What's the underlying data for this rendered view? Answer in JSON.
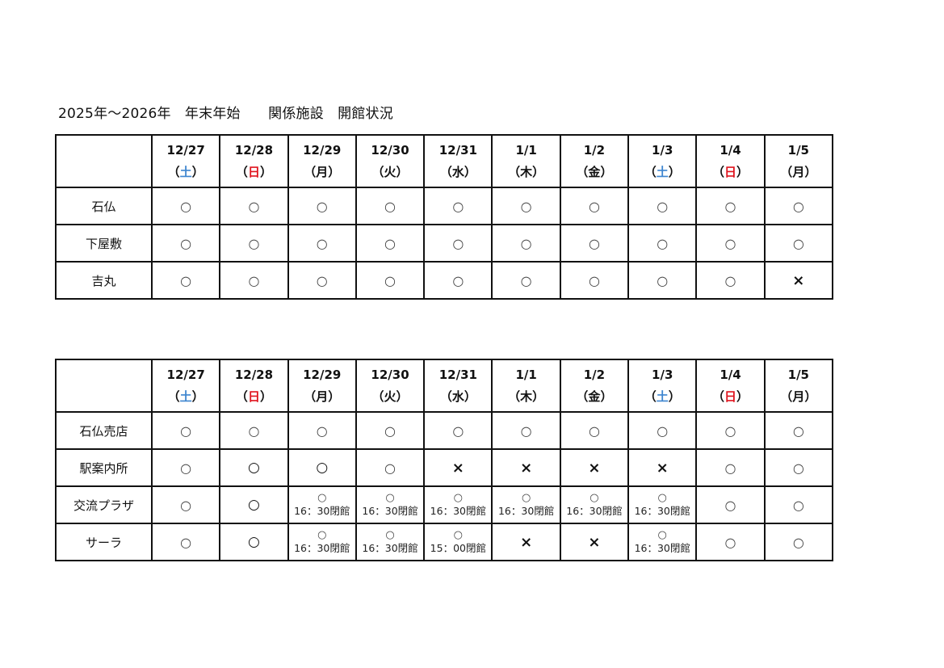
{
  "title": "2025年～2026年　年末年始　　関係施設　開館状況",
  "colors": {
    "saturday": "#3f86d0",
    "sunday": "#e0141e"
  },
  "tables": [
    {
      "days": [
        {
          "date": "12/27",
          "weekday": "土",
          "type": "sat"
        },
        {
          "date": "12/28",
          "weekday": "日",
          "type": "sun"
        },
        {
          "date": "12/29",
          "weekday": "月",
          "type": ""
        },
        {
          "date": "12/30",
          "weekday": "火",
          "type": ""
        },
        {
          "date": "12/31",
          "weekday": "水",
          "type": ""
        },
        {
          "date": "1/1",
          "weekday": "木",
          "type": ""
        },
        {
          "date": "1/2",
          "weekday": "金",
          "type": ""
        },
        {
          "date": "1/3",
          "weekday": "土",
          "type": "sat"
        },
        {
          "date": "1/4",
          "weekday": "日",
          "type": "sun"
        },
        {
          "date": "1/5",
          "weekday": "月",
          "type": ""
        }
      ],
      "rows": [
        {
          "facility": "石仏",
          "cells": [
            {
              "mark": "○"
            },
            {
              "mark": "○"
            },
            {
              "mark": "○"
            },
            {
              "mark": "○"
            },
            {
              "mark": "○"
            },
            {
              "mark": "○"
            },
            {
              "mark": "○"
            },
            {
              "mark": "○"
            },
            {
              "mark": "○"
            },
            {
              "mark": "○"
            }
          ]
        },
        {
          "facility": "下屋敷",
          "cells": [
            {
              "mark": "○"
            },
            {
              "mark": "○"
            },
            {
              "mark": "○"
            },
            {
              "mark": "○"
            },
            {
              "mark": "○"
            },
            {
              "mark": "○"
            },
            {
              "mark": "○"
            },
            {
              "mark": "○"
            },
            {
              "mark": "○"
            },
            {
              "mark": "○"
            }
          ]
        },
        {
          "facility": "吉丸",
          "cells": [
            {
              "mark": "○"
            },
            {
              "mark": "○"
            },
            {
              "mark": "○"
            },
            {
              "mark": "○"
            },
            {
              "mark": "○"
            },
            {
              "mark": "○"
            },
            {
              "mark": "○"
            },
            {
              "mark": "○"
            },
            {
              "mark": "○"
            },
            {
              "mark": "×"
            }
          ]
        }
      ]
    },
    {
      "days": [
        {
          "date": "12/27",
          "weekday": "土",
          "type": "sat"
        },
        {
          "date": "12/28",
          "weekday": "日",
          "type": "sun"
        },
        {
          "date": "12/29",
          "weekday": "月",
          "type": ""
        },
        {
          "date": "12/30",
          "weekday": "火",
          "type": ""
        },
        {
          "date": "12/31",
          "weekday": "水",
          "type": ""
        },
        {
          "date": "1/1",
          "weekday": "木",
          "type": ""
        },
        {
          "date": "1/2",
          "weekday": "金",
          "type": ""
        },
        {
          "date": "1/3",
          "weekday": "土",
          "type": "sat"
        },
        {
          "date": "1/4",
          "weekday": "日",
          "type": "sun"
        },
        {
          "date": "1/5",
          "weekday": "月",
          "type": ""
        }
      ],
      "rows": [
        {
          "facility": "石仏売店",
          "cells": [
            {
              "mark": "○"
            },
            {
              "mark": "○"
            },
            {
              "mark": "○"
            },
            {
              "mark": "○"
            },
            {
              "mark": "○"
            },
            {
              "mark": "○"
            },
            {
              "mark": "○"
            },
            {
              "mark": "○"
            },
            {
              "mark": "○"
            },
            {
              "mark": "○"
            }
          ]
        },
        {
          "facility": "駅案内所",
          "cells": [
            {
              "mark": "○"
            },
            {
              "mark": "○",
              "style": "bold"
            },
            {
              "mark": "○",
              "style": "bold"
            },
            {
              "mark": "○"
            },
            {
              "mark": "×"
            },
            {
              "mark": "×"
            },
            {
              "mark": "×"
            },
            {
              "mark": "×"
            },
            {
              "mark": "○"
            },
            {
              "mark": "○"
            }
          ]
        },
        {
          "facility": "交流プラザ",
          "cells": [
            {
              "mark": "○"
            },
            {
              "mark": "○",
              "style": "bold"
            },
            {
              "mark": "○",
              "note": "16：30閉館"
            },
            {
              "mark": "○",
              "note": "16：30閉館"
            },
            {
              "mark": "○",
              "note": "16：30閉館"
            },
            {
              "mark": "○",
              "note": "16：30閉館"
            },
            {
              "mark": "○",
              "note": "16：30閉館"
            },
            {
              "mark": "○",
              "note": "16：30閉館"
            },
            {
              "mark": "○"
            },
            {
              "mark": "○"
            }
          ]
        },
        {
          "facility": "サーラ",
          "cells": [
            {
              "mark": "○"
            },
            {
              "mark": "○",
              "style": "bold"
            },
            {
              "mark": "○",
              "note": "16：30閉館"
            },
            {
              "mark": "○",
              "note": "16：30閉館"
            },
            {
              "mark": "○",
              "note": "15：00閉館"
            },
            {
              "mark": "×"
            },
            {
              "mark": "×"
            },
            {
              "mark": "○",
              "note": "16：30閉館"
            },
            {
              "mark": "○"
            },
            {
              "mark": "○"
            }
          ]
        }
      ]
    }
  ]
}
